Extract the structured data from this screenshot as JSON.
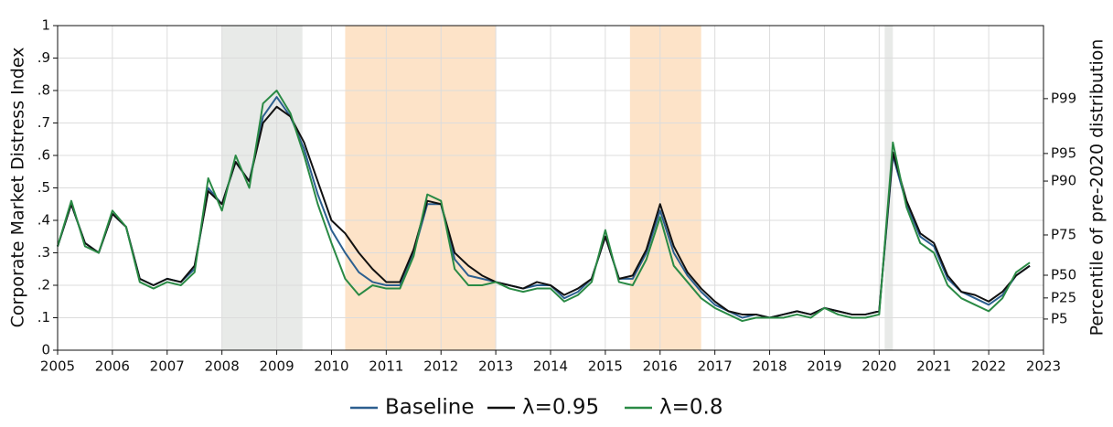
{
  "chart_data": {
    "type": "line",
    "y_label": "Corporate Market Distress Index",
    "y2_label": "Percentile of pre-2020 distribution",
    "xlim": [
      2005,
      2023
    ],
    "xticks": [
      2005,
      2006,
      2007,
      2008,
      2009,
      2010,
      2011,
      2012,
      2013,
      2014,
      2015,
      2016,
      2017,
      2018,
      2019,
      2020,
      2021,
      2022,
      2023
    ],
    "ylim": [
      0,
      1
    ],
    "yticks": [
      0,
      {
        "value": 0.1,
        "label": ".1"
      },
      {
        "value": 0.2,
        "label": ".2"
      },
      {
        "value": 0.3,
        "label": ".3"
      },
      {
        "value": 0.4,
        "label": ".4"
      },
      {
        "value": 0.5,
        "label": ".5"
      },
      {
        "value": 0.6,
        "label": ".6"
      },
      {
        "value": 0.7,
        "label": ".7"
      },
      {
        "value": 0.8,
        "label": ".8"
      },
      {
        "value": 0.9,
        "label": ".9"
      },
      1
    ],
    "y2lim": [
      0,
      1
    ],
    "y2ticks": [
      {
        "value": 0.096,
        "label": "P5"
      },
      {
        "value": 0.161,
        "label": "P25"
      },
      {
        "value": 0.231,
        "label": "P50"
      },
      {
        "value": 0.355,
        "label": "P75"
      },
      {
        "value": 0.521,
        "label": "P90"
      },
      {
        "value": 0.606,
        "label": "P95"
      },
      {
        "value": 0.775,
        "label": "P99"
      }
    ],
    "grid": true,
    "legend": "bottom",
    "shaded_regions": [
      {
        "start": 2008.0,
        "end": 2009.47,
        "color": "#e8eae8"
      },
      {
        "start": 2010.25,
        "end": 2013.0,
        "color": "#fde3c8"
      },
      {
        "start": 2015.45,
        "end": 2016.75,
        "color": "#fde3c8"
      },
      {
        "start": 2020.1,
        "end": 2020.25,
        "color": "#e8eae8"
      }
    ],
    "x": [
      2005.0,
      2005.25,
      2005.5,
      2005.75,
      2006.0,
      2006.25,
      2006.5,
      2006.75,
      2007.0,
      2007.25,
      2007.5,
      2007.75,
      2008.0,
      2008.25,
      2008.5,
      2008.75,
      2009.0,
      2009.25,
      2009.5,
      2009.75,
      2010.0,
      2010.25,
      2010.5,
      2010.75,
      2011.0,
      2011.25,
      2011.5,
      2011.75,
      2012.0,
      2012.25,
      2012.5,
      2012.75,
      2013.0,
      2013.25,
      2013.5,
      2013.75,
      2014.0,
      2014.25,
      2014.5,
      2014.75,
      2015.0,
      2015.25,
      2015.5,
      2015.75,
      2016.0,
      2016.25,
      2016.5,
      2016.75,
      2017.0,
      2017.25,
      2017.5,
      2017.75,
      2018.0,
      2018.25,
      2018.5,
      2018.75,
      2019.0,
      2019.25,
      2019.5,
      2019.75,
      2020.0,
      2020.25,
      2020.5,
      2020.75,
      2021.0,
      2021.25,
      2021.5,
      2021.75,
      2022.0,
      2022.25,
      2022.5,
      2022.75
    ],
    "series": [
      {
        "name": "Baseline",
        "color": "#2c5f8f",
        "values": [
          0.32,
          0.45,
          0.33,
          0.3,
          0.42,
          0.38,
          0.22,
          0.2,
          0.22,
          0.21,
          0.25,
          0.5,
          0.45,
          0.58,
          0.52,
          0.72,
          0.78,
          0.72,
          0.62,
          0.48,
          0.37,
          0.3,
          0.24,
          0.21,
          0.2,
          0.2,
          0.3,
          0.45,
          0.45,
          0.28,
          0.23,
          0.22,
          0.21,
          0.2,
          0.19,
          0.2,
          0.2,
          0.16,
          0.18,
          0.22,
          0.35,
          0.22,
          0.22,
          0.3,
          0.43,
          0.3,
          0.23,
          0.18,
          0.14,
          0.12,
          0.1,
          0.11,
          0.1,
          0.11,
          0.12,
          0.11,
          0.13,
          0.12,
          0.11,
          0.11,
          0.12,
          0.6,
          0.45,
          0.35,
          0.32,
          0.22,
          0.18,
          0.16,
          0.14,
          0.17,
          0.23,
          0.26
        ]
      },
      {
        "name": "λ=0.95",
        "color": "#111111",
        "values": [
          0.32,
          0.45,
          0.33,
          0.3,
          0.42,
          0.38,
          0.22,
          0.2,
          0.22,
          0.21,
          0.26,
          0.49,
          0.45,
          0.58,
          0.52,
          0.7,
          0.75,
          0.72,
          0.64,
          0.52,
          0.4,
          0.36,
          0.3,
          0.25,
          0.21,
          0.21,
          0.31,
          0.46,
          0.45,
          0.3,
          0.26,
          0.23,
          0.21,
          0.2,
          0.19,
          0.21,
          0.2,
          0.17,
          0.19,
          0.22,
          0.35,
          0.22,
          0.23,
          0.31,
          0.45,
          0.32,
          0.24,
          0.19,
          0.15,
          0.12,
          0.11,
          0.11,
          0.1,
          0.11,
          0.12,
          0.11,
          0.13,
          0.12,
          0.11,
          0.11,
          0.12,
          0.61,
          0.46,
          0.36,
          0.33,
          0.23,
          0.18,
          0.17,
          0.15,
          0.18,
          0.23,
          0.26
        ]
      },
      {
        "name": "λ=0.8",
        "color": "#2a8a45",
        "values": [
          0.32,
          0.46,
          0.32,
          0.3,
          0.43,
          0.38,
          0.21,
          0.19,
          0.21,
          0.2,
          0.24,
          0.53,
          0.43,
          0.6,
          0.5,
          0.76,
          0.8,
          0.73,
          0.6,
          0.45,
          0.33,
          0.22,
          0.17,
          0.2,
          0.19,
          0.19,
          0.29,
          0.48,
          0.46,
          0.25,
          0.2,
          0.2,
          0.21,
          0.19,
          0.18,
          0.19,
          0.19,
          0.15,
          0.17,
          0.21,
          0.37,
          0.21,
          0.2,
          0.28,
          0.41,
          0.26,
          0.21,
          0.16,
          0.13,
          0.11,
          0.09,
          0.1,
          0.1,
          0.1,
          0.11,
          0.1,
          0.13,
          0.11,
          0.1,
          0.1,
          0.11,
          0.64,
          0.44,
          0.33,
          0.3,
          0.2,
          0.16,
          0.14,
          0.12,
          0.16,
          0.24,
          0.27
        ]
      }
    ]
  }
}
